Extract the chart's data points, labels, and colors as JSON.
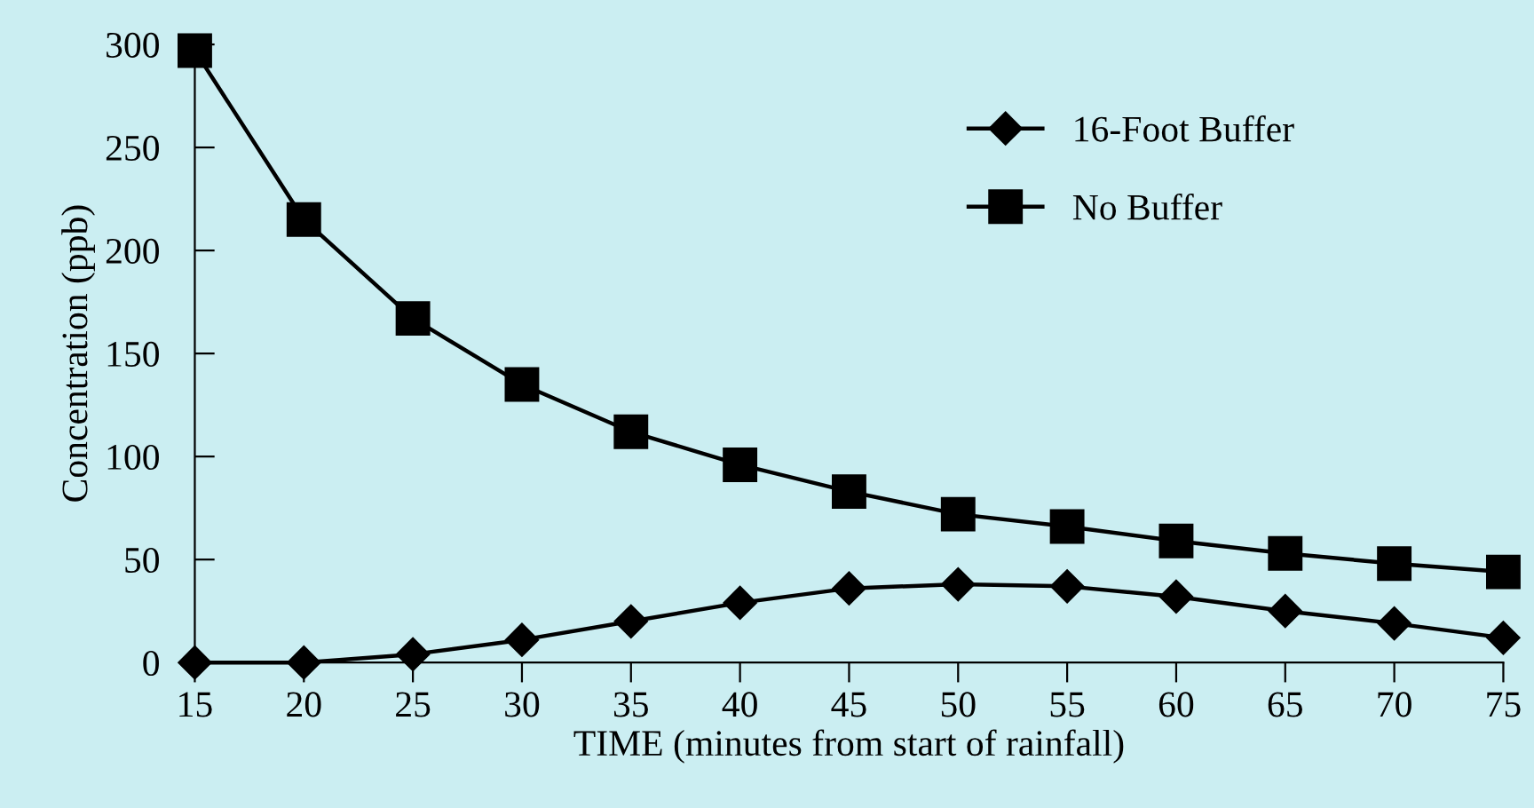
{
  "chart_data": {
    "type": "line",
    "xlabel": "TIME (minutes from start of rainfall)",
    "ylabel": "Concentration (ppb)",
    "x": [
      15,
      20,
      25,
      30,
      35,
      40,
      45,
      50,
      55,
      60,
      65,
      70,
      75
    ],
    "series": [
      {
        "name": "16-Foot Buffer",
        "color": "#000000",
        "marker": "diamond",
        "values": [
          0,
          0,
          4,
          11,
          20,
          29,
          36,
          38,
          37,
          32,
          25,
          19,
          12
        ]
      },
      {
        "name": "No Buffer",
        "color": "#000000",
        "marker": "square",
        "values": [
          297,
          215,
          167,
          135,
          112,
          96,
          83,
          72,
          66,
          59,
          53,
          48,
          44
        ]
      }
    ],
    "xlim": [
      15,
      75
    ],
    "ylim": [
      0,
      300
    ],
    "xticks": [
      15,
      20,
      25,
      30,
      35,
      40,
      45,
      50,
      55,
      60,
      65,
      70,
      75
    ],
    "yticks": [
      0,
      50,
      100,
      150,
      200,
      250,
      300
    ],
    "grid": false,
    "legend": "top right",
    "line_style": "solid"
  }
}
